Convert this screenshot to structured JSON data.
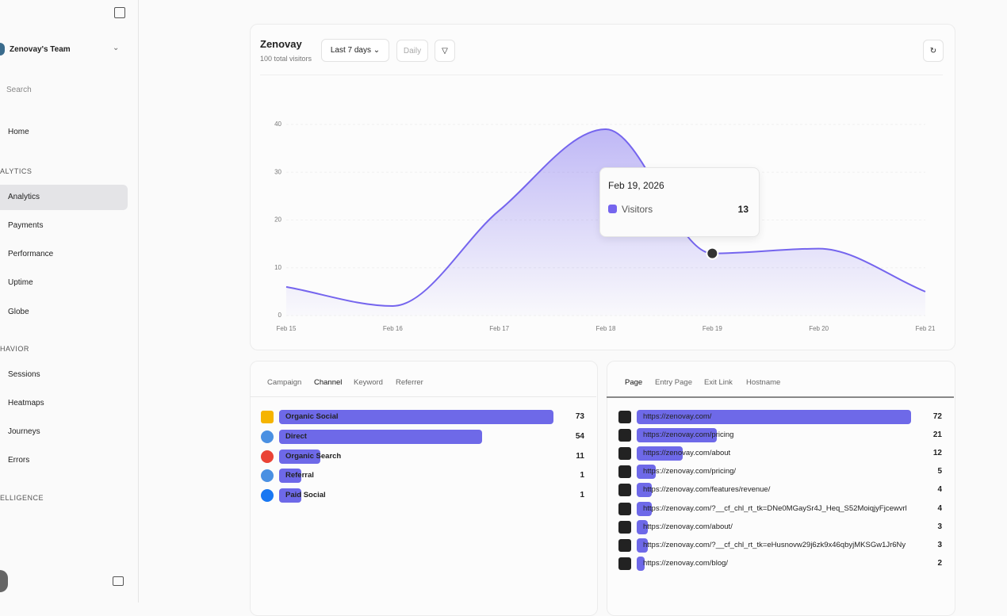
{
  "sidebar": {
    "team": "Zenovay's Team",
    "search": "Search",
    "home": "Home",
    "sections": [
      {
        "title": "ALYTICS",
        "items": [
          "Analytics",
          "Payments",
          "Performance",
          "Uptime",
          "Globe"
        ]
      },
      {
        "title": "HAVIOR",
        "items": [
          "Sessions",
          "Heatmaps",
          "Journeys",
          "Errors"
        ]
      },
      {
        "title": "ELLIGENCE"
      }
    ]
  },
  "header": {
    "title": "Zenovay",
    "subtitle": "100 total visitors",
    "range": "Last 7 days",
    "interval": "Daily"
  },
  "chart": {
    "type": "area",
    "x": [
      "Feb 15",
      "Feb 16",
      "Feb 17",
      "Feb 18",
      "Feb 19",
      "Feb 20",
      "Feb 21"
    ],
    "series": [
      {
        "name": "Visitors",
        "color": "#7565ee",
        "values": [
          6,
          2,
          22,
          39,
          13,
          14,
          5
        ]
      }
    ],
    "ylim": [
      0,
      40
    ],
    "yticks": [
      0,
      10,
      20,
      30,
      40
    ],
    "grid": true,
    "tooltip": {
      "date": "Feb 19, 2026"
    }
  },
  "channels": {
    "tabs": [
      "Campaign",
      "Channel",
      "Keyword",
      "Referrer"
    ],
    "rows": [
      {
        "label": "Organic Social",
        "value": 73
      },
      {
        "label": "Direct",
        "value": 54
      },
      {
        "label": "Organic Search",
        "value": 11
      },
      {
        "label": "Referral",
        "value": 1
      },
      {
        "label": "Paid Social",
        "value": 1
      }
    ]
  },
  "pages": {
    "tabs": [
      "Page",
      "Entry Page",
      "Exit Link",
      "Hostname"
    ],
    "rows": [
      {
        "label": "https://zenovay.com/",
        "value": 72
      },
      {
        "label": "https://zenovay.com/pricing",
        "value": 21
      },
      {
        "label": "https://zenovay.com/about",
        "value": 12
      },
      {
        "label": "https://zenovay.com/pricing/",
        "value": 5
      },
      {
        "label": "https://zenovay.com/features/revenue/",
        "value": 4
      },
      {
        "label": "https://zenovay.com/?__cf_chl_rt_tk=DNe0MGaySr4J_Heq_S52MoiqjyFjcewvrl",
        "value": 4
      },
      {
        "label": "https://zenovay.com/about/",
        "value": 3
      },
      {
        "label": "https://zenovay.com/?__cf_chl_rt_tk=eHusnovw29j6zk9x46qbyjMKSGw1Jr6Ny",
        "value": 3
      },
      {
        "label": "https://zenovay.com/blog/",
        "value": 2
      }
    ]
  }
}
